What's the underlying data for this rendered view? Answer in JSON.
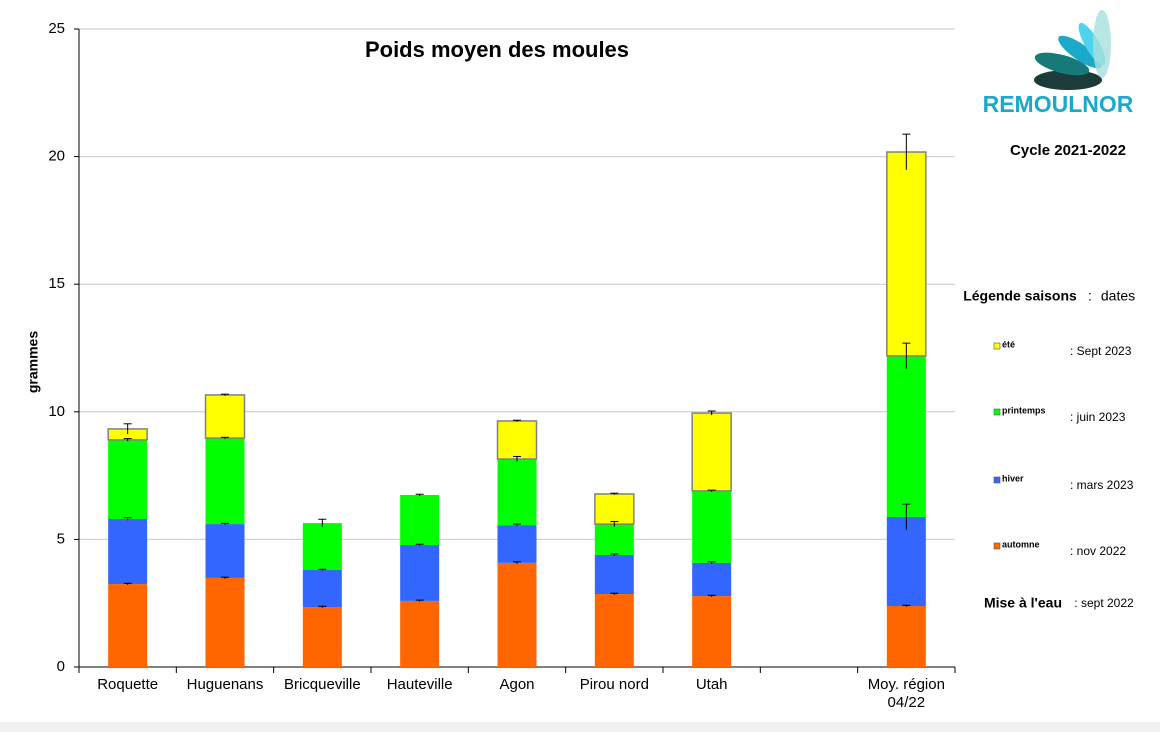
{
  "chart_data": {
    "type": "stacked_bar",
    "title": "Poids moyen des moules",
    "y_label": "grammes",
    "categories": [
      "Roquette",
      "Huguenans",
      "Bricqueville",
      "Hauteville",
      "Agon",
      "Pirou nord",
      "Utah",
      null,
      "Moy. région\n04/22"
    ],
    "series": [
      {
        "name": "automne",
        "date": ": nov 2022",
        "color": "#ff6600",
        "values": [
          3.25,
          3.49,
          2.35,
          2.59,
          4.08,
          2.86,
          2.78,
          null,
          2.39
        ],
        "errors": [
          0.03,
          0.03,
          0.03,
          0.03,
          0.04,
          0.03,
          0.03,
          null,
          0.03
        ]
      },
      {
        "name": "hiver",
        "date": ": mars 2023",
        "color": "#3366ff",
        "values": [
          2.55,
          2.11,
          1.45,
          2.19,
          1.48,
          1.53,
          1.3,
          null,
          3.49
        ],
        "errors": [
          0.05,
          0.03,
          0.03,
          0.03,
          0.04,
          0.04,
          0.04,
          null,
          0.5
        ]
      },
      {
        "name": "printemps",
        "date": ":  juin 2023",
        "color": "#00ff00",
        "values": [
          3.1,
          3.37,
          1.84,
          1.96,
          2.59,
          1.21,
          2.82,
          null,
          6.31
        ],
        "errors": [
          0.05,
          0.03,
          0.15,
          0.03,
          0.1,
          0.1,
          0.03,
          null,
          0.5
        ]
      },
      {
        "name": "été",
        "date": ": Sept 2023",
        "color": "#ffff00",
        "values": [
          0.43,
          1.69,
          null,
          null,
          1.49,
          1.18,
          3.05,
          null,
          7.99
        ],
        "errors": [
          0.2,
          0.03,
          null,
          null,
          0.03,
          0.03,
          0.08,
          null,
          0.7
        ]
      }
    ],
    "ylim": [
      0,
      25
    ],
    "yticks": [
      0,
      5,
      10,
      15,
      20,
      25
    ],
    "grid": true,
    "legend_title": "Légende saisons",
    "legend_sep": ":",
    "legend_dates_title": "dates",
    "immersion_label": "Mise à l'eau",
    "immersion_date": ": sept 2022",
    "logo_text": "REMOULNOR",
    "cycle": "Cycle 2021-2022"
  }
}
